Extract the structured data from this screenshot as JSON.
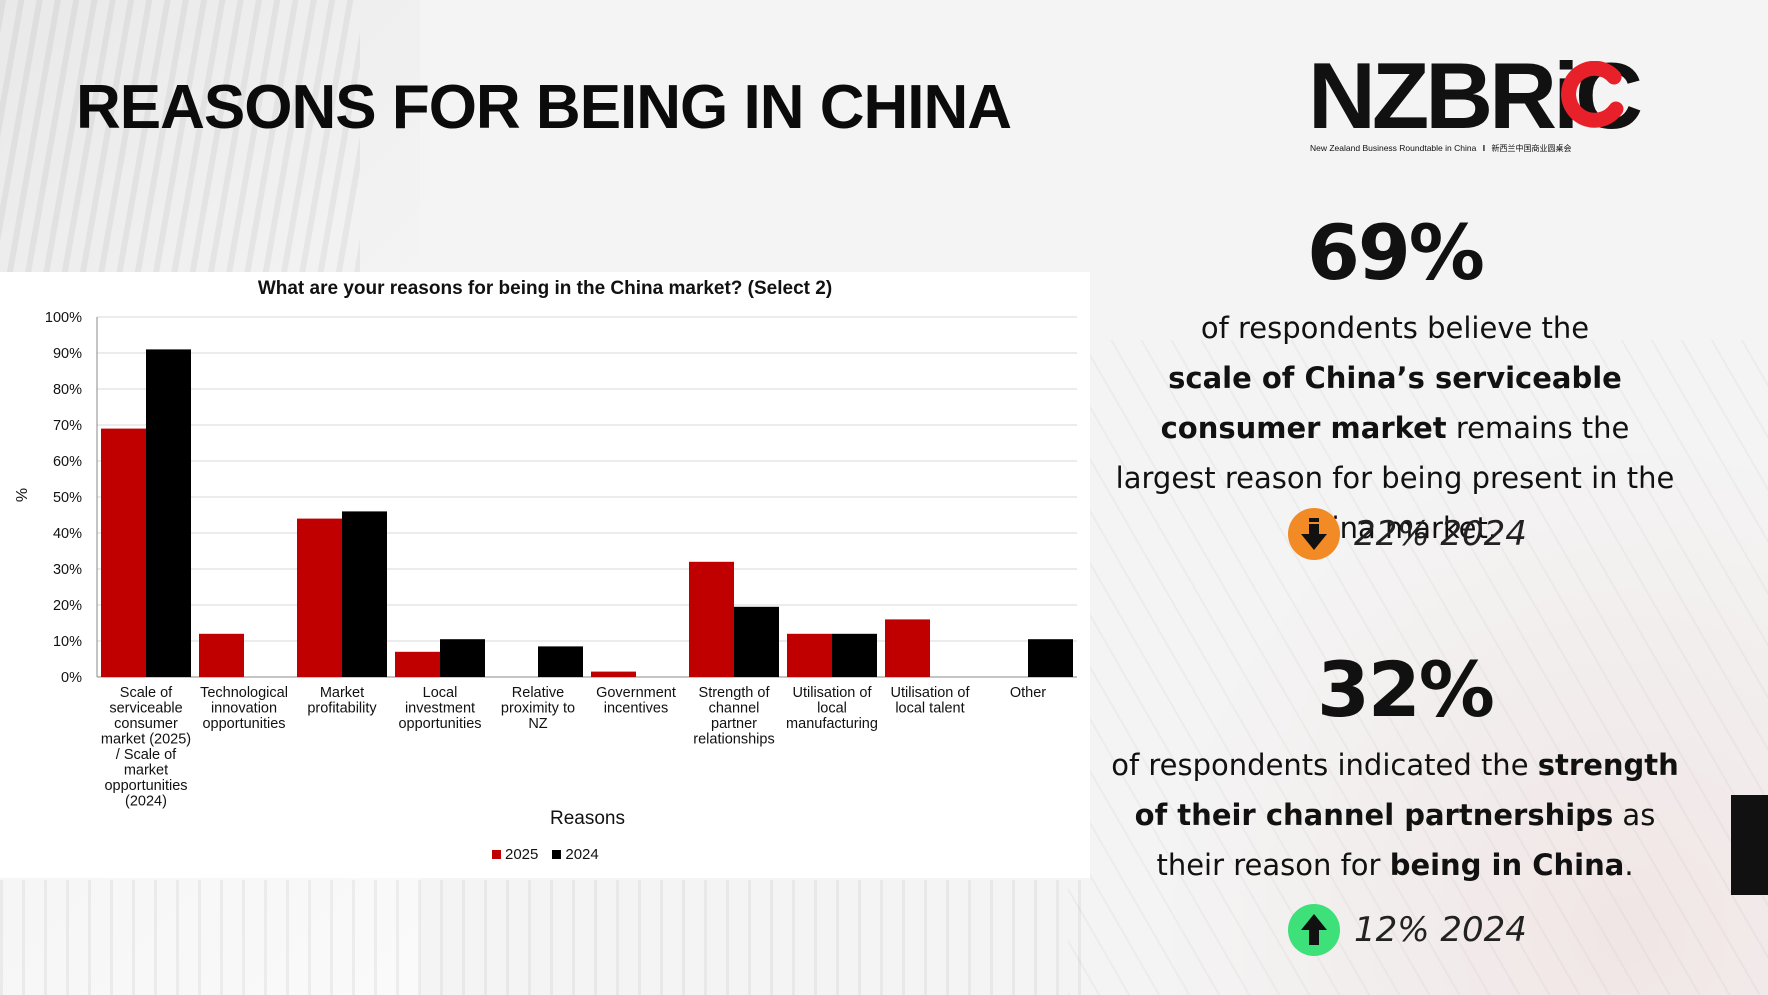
{
  "page": {
    "title": "REASONS FOR BEING IN CHINA"
  },
  "logo": {
    "text": "NZBRiC",
    "subtitle": "New Zealand Business Roundtable in China",
    "subtitle_cn": "新西兰中国商业圆桌会",
    "separator": "I"
  },
  "chart_data": {
    "type": "bar",
    "title": "What are your reasons for being in the China market? (Select 2)",
    "xlabel": "Reasons",
    "ylabel": "%",
    "ylim": [
      0,
      100
    ],
    "yticks": [
      "0%",
      "10%",
      "20%",
      "30%",
      "40%",
      "50%",
      "60%",
      "70%",
      "80%",
      "90%",
      "100%"
    ],
    "categories": [
      [
        "Scale of",
        "serviceable",
        "consumer",
        "market (2025)",
        "/ Scale of",
        "market",
        "opportunities",
        "(2024)"
      ],
      [
        "Technological",
        "innovation",
        "opportunities"
      ],
      [
        "Market",
        "profitability"
      ],
      [
        "Local",
        "investment",
        "opportunities"
      ],
      [
        "Relative",
        "proximity to",
        "NZ"
      ],
      [
        "Government",
        "incentives"
      ],
      [
        "Strength of",
        "channel",
        "partner",
        "relationships"
      ],
      [
        "Utilisation of",
        "local",
        "manufacturing"
      ],
      [
        "Utilisation of",
        "local talent"
      ],
      [
        "Other"
      ]
    ],
    "series": [
      {
        "name": "2025",
        "color": "#c00000",
        "values": [
          69,
          12,
          44,
          7,
          0,
          1.5,
          32,
          12,
          16,
          0
        ]
      },
      {
        "name": "2024",
        "color": "#000000",
        "values": [
          91,
          0,
          46,
          10.5,
          8.5,
          0,
          19.5,
          12,
          0,
          10.5
        ]
      }
    ],
    "grid": true,
    "legend_position": "bottom"
  },
  "stats": [
    {
      "value": "69%",
      "desc_parts": [
        {
          "text": "of respondents believe the ",
          "bold": false
        },
        {
          "text": "scale of China’s serviceable consumer market",
          "bold": true
        },
        {
          "text": " remains the largest reason for being present in the China market.",
          "bold": false
        }
      ],
      "change": "22% 2024",
      "direction": "down",
      "badge_color": "#f28a25"
    },
    {
      "value": "32%",
      "desc_parts": [
        {
          "text": "of respondents indicated the ",
          "bold": false
        },
        {
          "text": "strength of their channel partnerships",
          "bold": true
        },
        {
          "text": " as their reason for ",
          "bold": false
        },
        {
          "text": "being in China",
          "bold": true
        },
        {
          "text": ".",
          "bold": false
        }
      ],
      "change": "12% 2024",
      "direction": "up",
      "badge_color": "#3ee07a"
    }
  ]
}
